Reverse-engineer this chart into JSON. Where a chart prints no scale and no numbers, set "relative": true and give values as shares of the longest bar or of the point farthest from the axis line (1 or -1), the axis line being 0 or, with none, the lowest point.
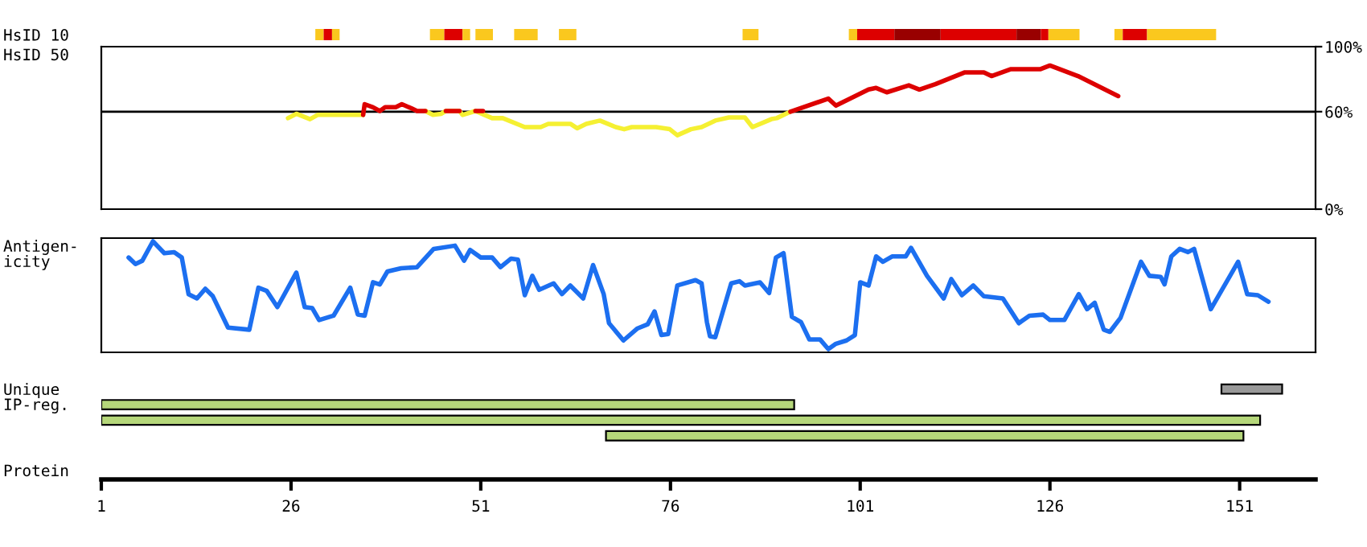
{
  "chart_data": [
    {
      "type": "bar",
      "orientation": "horizontal",
      "categories": [
        "HsID 10"
      ],
      "xlim": [
        1,
        161
      ],
      "tick_labels": "y",
      "legend": false,
      "series": [
        {
          "color": "#fac81e",
          "values": [
            1.1
          ],
          "base": [
            29.2
          ]
        },
        {
          "color": "#dd0000",
          "values": [
            1.1
          ],
          "base": [
            30.3
          ]
        },
        {
          "color": "#fac81e",
          "values": [
            1.0
          ],
          "base": [
            31.4
          ]
        },
        {
          "color": "#fac81e",
          "values": [
            1.9
          ],
          "base": [
            44.3
          ]
        },
        {
          "color": "#dd0000",
          "values": [
            2.4
          ],
          "base": [
            46.2
          ]
        },
        {
          "color": "#fac81e",
          "values": [
            1.0
          ],
          "base": [
            48.6
          ]
        },
        {
          "color": "#fac81e",
          "values": [
            2.3
          ],
          "base": [
            50.3
          ]
        },
        {
          "color": "#fac81e",
          "values": [
            3.1
          ],
          "base": [
            55.4
          ]
        },
        {
          "color": "#fac81e",
          "values": [
            2.3
          ],
          "base": [
            61.3
          ]
        },
        {
          "color": "#fac81e",
          "values": [
            2.1
          ],
          "base": [
            85.5
          ]
        },
        {
          "color": "#fac81e",
          "values": [
            1.1
          ],
          "base": [
            99.5
          ]
        },
        {
          "color": "#dd0000",
          "values": [
            4.9
          ],
          "base": [
            100.6
          ]
        },
        {
          "color": "#990000",
          "values": [
            6.1
          ],
          "base": [
            105.5
          ]
        },
        {
          "color": "#dd0000",
          "values": [
            10.0
          ],
          "base": [
            111.6
          ]
        },
        {
          "color": "#990000",
          "values": [
            3.2
          ],
          "base": [
            121.6
          ]
        },
        {
          "color": "#dd0000",
          "values": [
            1.0
          ],
          "base": [
            124.8
          ]
        },
        {
          "color": "#fac81e",
          "values": [
            4.1
          ],
          "base": [
            125.8
          ]
        },
        {
          "color": "#fac81e",
          "values": [
            1.1
          ],
          "base": [
            134.5
          ]
        },
        {
          "color": "#dd0000",
          "values": [
            3.2
          ],
          "base": [
            135.6
          ]
        },
        {
          "color": "#fac81e",
          "values": [
            9.1
          ],
          "base": [
            138.8
          ]
        }
      ]
    },
    {
      "type": "line",
      "ylabel": "HsID 50",
      "xlim": [
        1,
        161
      ],
      "ylim": [
        0,
        100
      ],
      "yticks": [
        {
          "value": 100,
          "label": "100%"
        },
        {
          "value": 60,
          "label": "60%"
        },
        {
          "value": 0,
          "label": "0%"
        }
      ],
      "tick_labels": "y",
      "grid": false,
      "legend": false,
      "line_style": "solid",
      "marker": "none",
      "ref_lines": [
        {
          "axis": "y",
          "value": 60,
          "color": "#000000"
        }
      ],
      "series": [
        {
          "color": "#f5f032",
          "x": [
            25.6,
            26.7,
            28.5,
            29.5,
            34.5,
            35.5,
            null,
            43.7,
            44.7,
            45.8,
            46.4,
            48.2,
            48.6,
            50.3,
            51.5,
            52.5,
            53.9,
            56.8,
            58.9,
            59.9,
            62.8,
            63.7,
            64.9,
            66.7,
            68.8,
            69.9,
            70.9,
            74.1,
            75.9,
            76.9,
            78.7,
            80.1,
            81.9,
            83.7,
            85.8,
            86.8,
            89.3,
            90.0,
            91.8
          ],
          "values": [
            56,
            58.7,
            55.4,
            58,
            58,
            58,
            null,
            60.4,
            58,
            58.7,
            60.4,
            60.4,
            58,
            60.4,
            58,
            56,
            56,
            50.5,
            50.5,
            52.5,
            52.5,
            49.8,
            52.5,
            54.5,
            50.5,
            49.2,
            50.5,
            50.5,
            49.2,
            45.5,
            49.2,
            50.5,
            54.5,
            56.4,
            56.4,
            50.5,
            55.4,
            56,
            60
          ]
        },
        {
          "color": "#dd0000",
          "x": [
            35.5,
            35.7,
            36.8,
            37.7,
            38.4,
            39.8,
            40.6,
            41.9,
            42.6,
            43.7,
            45,
            46.4,
            48.2,
            49.5,
            50.3,
            51.3,
            70,
            91.8,
            96.8,
            97.8,
            102.1,
            103.1,
            104.5,
            107.4,
            108.8,
            110.9,
            114.8,
            117.3,
            118.3,
            120.8,
            124.7,
            126,
            129.7,
            135
          ],
          "values": [
            58,
            64.6,
            62.7,
            60.4,
            62.7,
            62.7,
            64.6,
            62,
            60.4,
            60.4,
            null,
            60.4,
            60.4,
            null,
            60.4,
            60.4,
            null,
            60,
            68,
            63.7,
            73.6,
            74.6,
            71.9,
            76.2,
            73.6,
            76.9,
            84.2,
            84.2,
            81.9,
            86.1,
            86.1,
            88.4,
            81.9,
            69.6
          ]
        }
      ]
    },
    {
      "type": "line",
      "relative": true,
      "ylabel": "Antigen-\nicity",
      "xlim": [
        1,
        161
      ],
      "tick_labels": false,
      "legend": false,
      "line_style": "solid",
      "marker": "none",
      "series": [
        {
          "color": "#1c6ff0",
          "x": [
            4.6,
            5.5,
            6.4,
            7.8,
            9.3,
            10.6,
            11.6,
            12.5,
            13.6,
            14.7,
            15.7,
            17.7,
            20.5,
            21.7,
            22.8,
            24.2,
            26.7,
            27.8,
            28.8,
            29.7,
            31.6,
            33.8,
            34.8,
            35.7,
            36.8,
            37.7,
            38.7,
            40.5,
            42.6,
            44.8,
            47.6,
            48.8,
            49.6,
            51,
            52.5,
            53.6,
            55,
            55.9,
            56.8,
            57.8,
            58.7,
            60.6,
            61.7,
            62.8,
            64.5,
            65.8,
            67.2,
            67.9,
            69.8,
            71.6,
            73,
            73.9,
            74.8,
            75.7,
            76.9,
            79.3,
            80.1,
            80.8,
            81.2,
            81.9,
            84,
            85.1,
            85.8,
            87.8,
            89,
            89.9,
            90.9,
            92,
            93.2,
            94.3,
            95.7,
            96.8,
            97.8,
            99.2,
            100.3,
            101,
            102.1,
            103.1,
            104,
            105.2,
            107,
            107.7,
            109.8,
            112,
            113,
            114.4,
            115.9,
            117.3,
            119.8,
            121.9,
            123.3,
            125.1,
            126,
            127.9,
            129.8,
            130.9,
            131.9,
            133.1,
            133.9,
            135.3,
            138,
            139.1,
            140.6,
            141.1,
            142,
            143.1,
            144.2,
            145,
            147.2,
            150.8,
            152,
            153.4,
            154.8
          ],
          "values": [
            0.85,
            0.79,
            0.82,
            1.0,
            0.89,
            0.9,
            0.85,
            0.51,
            0.47,
            0.56,
            0.49,
            0.2,
            0.18,
            0.57,
            0.54,
            0.39,
            0.71,
            0.39,
            0.38,
            0.27,
            0.31,
            0.57,
            0.32,
            0.31,
            0.62,
            0.6,
            0.72,
            0.75,
            0.76,
            0.93,
            0.96,
            0.82,
            0.92,
            0.85,
            0.85,
            0.76,
            0.84,
            0.83,
            0.5,
            0.68,
            0.55,
            0.61,
            0.51,
            0.59,
            0.47,
            0.78,
            0.51,
            0.24,
            0.08,
            0.19,
            0.23,
            0.35,
            0.13,
            0.14,
            0.59,
            0.64,
            0.61,
            0.25,
            0.12,
            0.11,
            0.61,
            0.63,
            0.59,
            0.62,
            0.52,
            0.85,
            0.89,
            0.3,
            0.25,
            0.09,
            0.09,
            0,
            0.05,
            0.08,
            0.13,
            0.62,
            0.59,
            0.86,
            0.81,
            0.86,
            0.86,
            0.94,
            0.68,
            0.47,
            0.65,
            0.5,
            0.59,
            0.49,
            0.47,
            0.24,
            0.31,
            0.32,
            0.27,
            0.27,
            0.51,
            0.37,
            0.43,
            0.18,
            0.16,
            0.29,
            0.81,
            0.68,
            0.67,
            0.6,
            0.86,
            0.93,
            0.9,
            0.93,
            0.37,
            0.81,
            0.51,
            0.5,
            0.44
          ]
        }
      ]
    },
    {
      "type": "bar",
      "orientation": "horizontal",
      "ylabel": "Unique\nIP-reg.",
      "xlabel": "Protein",
      "categories": [
        null,
        null,
        null,
        null
      ],
      "xlim": [
        1,
        161
      ],
      "xticks": [
        1,
        26,
        51,
        76,
        101,
        126,
        151
      ],
      "tick_labels": "x",
      "legend": false,
      "values": [
        8,
        91.3,
        152.7,
        84
      ],
      "base": [
        148.6,
        1,
        1,
        67.5
      ],
      "colors": [
        "#999999",
        "#b5d77a",
        "#b5d77a",
        "#b5d77a"
      ]
    }
  ]
}
